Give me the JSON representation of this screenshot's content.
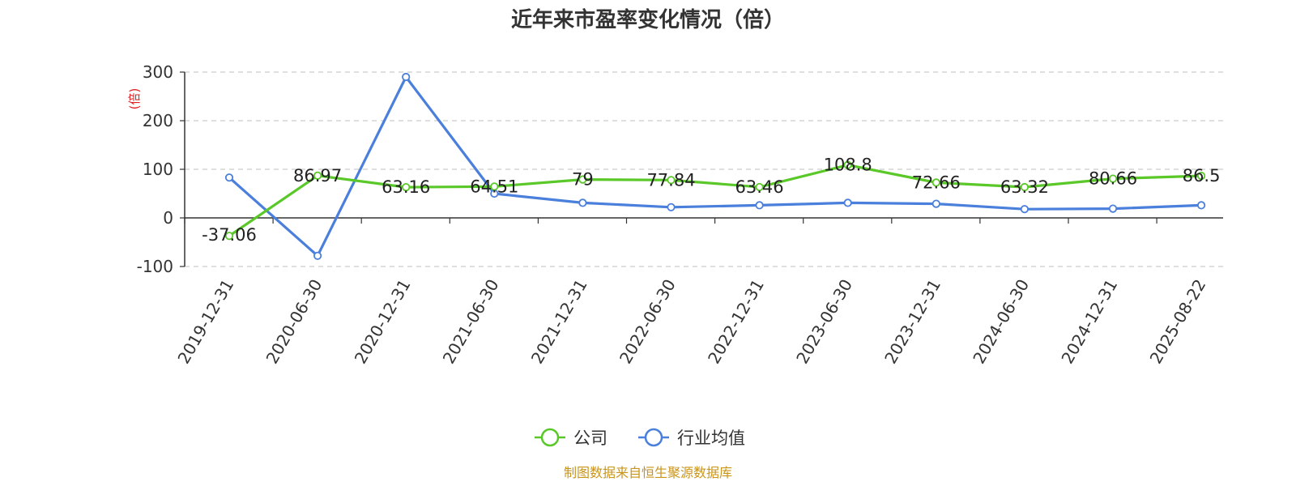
{
  "chart_data": {
    "type": "line",
    "title": "近年来市盈率变化情况（倍）",
    "ylabel": "(倍)",
    "ylim": [
      -100,
      300
    ],
    "yticks": [
      -100,
      0,
      100,
      200,
      300
    ],
    "grid": true,
    "legend_position": "bottom-center",
    "categories": [
      "2019-12-31",
      "2020-06-30",
      "2020-12-31",
      "2021-06-30",
      "2021-12-31",
      "2022-06-30",
      "2022-12-31",
      "2023-06-30",
      "2023-12-31",
      "2024-06-30",
      "2024-12-31",
      "2025-08-22"
    ],
    "series": [
      {
        "name": "公司",
        "color": "#5ac828",
        "values": [
          -37.06,
          86.97,
          63.16,
          64.51,
          79,
          77.84,
          63.46,
          108.8,
          72.66,
          63.32,
          80.66,
          86.5
        ],
        "labels": [
          "-37.06",
          "86.97",
          "63.16",
          "64.51",
          "79",
          "77.84",
          "63.46",
          "108.8",
          "72.66",
          "63.32",
          "80.66",
          "86.5"
        ]
      },
      {
        "name": "行业均值",
        "color": "#4a7fdc",
        "values": [
          83,
          -78,
          290,
          50,
          31,
          22,
          26,
          31,
          29,
          18,
          19,
          26
        ]
      }
    ],
    "source": "制图数据来自恒生聚源数据库",
    "ylabel_color": "#e02020",
    "source_color": "#c9941a"
  }
}
